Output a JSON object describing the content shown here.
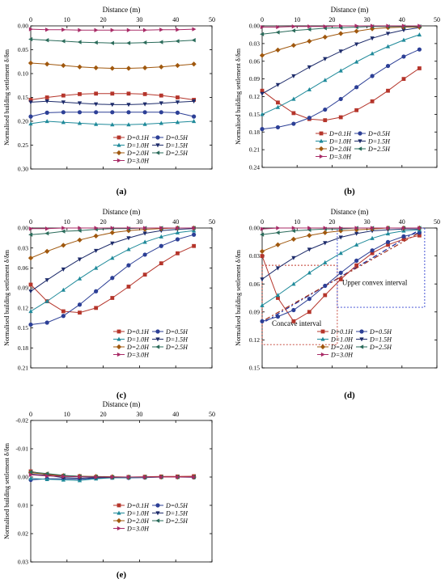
{
  "chart_data": [
    {
      "panel_label": "(a)",
      "type": "line",
      "xlabel": "Distance (m)",
      "ylabel": "Normalised building settlement δ/δm",
      "xlim": [
        0,
        50
      ],
      "xticks": [
        0,
        10,
        20,
        30,
        40,
        50
      ],
      "ylim": [
        0,
        0.3
      ],
      "yticks": [
        0.0,
        0.05,
        0.1,
        0.15,
        0.2,
        0.25,
        0.3
      ],
      "y_inverted": true,
      "x": [
        0,
        4.5,
        9,
        13.5,
        18,
        22.5,
        27,
        31.5,
        36,
        40.5,
        45
      ],
      "legend": [
        "D=0.1H",
        "D=0.5H",
        "D=1.0H",
        "D=1.5H",
        "D=2.0H",
        "D=2.5H",
        "D=3.0H"
      ],
      "series": [
        {
          "name": "D=0.1H",
          "color": "#b5352b",
          "marker": "square",
          "values": [
            0.155,
            0.15,
            0.146,
            0.143,
            0.142,
            0.142,
            0.142,
            0.143,
            0.146,
            0.15,
            0.155
          ]
        },
        {
          "name": "D=0.5H",
          "color": "#2c3f96",
          "marker": "circle",
          "values": [
            0.19,
            0.182,
            0.181,
            0.181,
            0.181,
            0.181,
            0.181,
            0.181,
            0.181,
            0.182,
            0.19
          ]
        },
        {
          "name": "D=1.0H",
          "color": "#1f8a9a",
          "marker": "triangle",
          "values": [
            0.205,
            0.2,
            0.202,
            0.204,
            0.206,
            0.207,
            0.207,
            0.206,
            0.204,
            0.202,
            0.2
          ]
        },
        {
          "name": "D=1.5H",
          "color": "#1d2b6a",
          "marker": "tri-down",
          "values": [
            0.16,
            0.158,
            0.16,
            0.162,
            0.164,
            0.165,
            0.165,
            0.164,
            0.162,
            0.16,
            0.158
          ]
        },
        {
          "name": "D=2.0H",
          "color": "#a0580e",
          "marker": "diamond",
          "values": [
            0.078,
            0.08,
            0.083,
            0.086,
            0.088,
            0.089,
            0.089,
            0.088,
            0.086,
            0.083,
            0.08
          ]
        },
        {
          "name": "D=2.5H",
          "color": "#2a6b5a",
          "marker": "tri-left",
          "values": [
            0.028,
            0.03,
            0.032,
            0.034,
            0.035,
            0.036,
            0.036,
            0.035,
            0.034,
            0.032,
            0.03
          ]
        },
        {
          "name": "D=3.0H",
          "color": "#a82a66",
          "marker": "tri-right",
          "values": [
            0.007,
            0.008,
            0.008,
            0.009,
            0.009,
            0.009,
            0.009,
            0.009,
            0.008,
            0.008,
            0.007
          ]
        }
      ]
    },
    {
      "panel_label": "(b)",
      "type": "line",
      "xlabel": "Distance (m)",
      "ylabel": "Normalised building settlement δ/δm",
      "xlim": [
        0,
        50
      ],
      "xticks": [
        0,
        10,
        20,
        30,
        40,
        50
      ],
      "ylim": [
        0,
        0.24
      ],
      "yticks": [
        0.0,
        0.03,
        0.06,
        0.09,
        0.12,
        0.15,
        0.18,
        0.21,
        0.24
      ],
      "y_inverted": true,
      "x": [
        0,
        4.5,
        9,
        13.5,
        18,
        22.5,
        27,
        31.5,
        36,
        40.5,
        45
      ],
      "legend": [
        "D=0.1H",
        "D=0.5H",
        "D=1.0H",
        "D=1.5H",
        "D=2.0H",
        "D=2.5H",
        "D=3.0H"
      ],
      "series": [
        {
          "name": "D=0.1H",
          "color": "#b5352b",
          "marker": "square",
          "values": [
            0.11,
            0.13,
            0.148,
            0.158,
            0.16,
            0.155,
            0.143,
            0.128,
            0.11,
            0.09,
            0.072
          ]
        },
        {
          "name": "D=0.5H",
          "color": "#2c3f96",
          "marker": "circle",
          "values": [
            0.175,
            0.172,
            0.166,
            0.156,
            0.142,
            0.124,
            0.104,
            0.085,
            0.068,
            0.052,
            0.04
          ]
        },
        {
          "name": "D=1.0H",
          "color": "#1f8a9a",
          "marker": "triangle",
          "values": [
            0.15,
            0.138,
            0.124,
            0.108,
            0.092,
            0.076,
            0.061,
            0.047,
            0.035,
            0.024,
            0.015
          ]
        },
        {
          "name": "D=1.5H",
          "color": "#1d2b6a",
          "marker": "tri-down",
          "values": [
            0.115,
            0.1,
            0.085,
            0.07,
            0.056,
            0.043,
            0.031,
            0.021,
            0.013,
            0.007,
            0.003
          ]
        },
        {
          "name": "D=2.0H",
          "color": "#a0580e",
          "marker": "diamond",
          "values": [
            0.05,
            0.041,
            0.033,
            0.026,
            0.019,
            0.013,
            0.009,
            0.005,
            0.003,
            0.002,
            0.002
          ]
        },
        {
          "name": "D=2.5H",
          "color": "#2a6b5a",
          "marker": "tri-left",
          "values": [
            0.014,
            0.011,
            0.008,
            0.006,
            0.004,
            0.003,
            0.002,
            0.001,
            0.001,
            0.001,
            0.001
          ]
        },
        {
          "name": "D=3.0H",
          "color": "#a82a66",
          "marker": "tri-right",
          "values": [
            0.002,
            0.002,
            0.001,
            0.001,
            0.001,
            0.0,
            0.0,
            0.0,
            0.0,
            0.0,
            0.0
          ]
        }
      ]
    },
    {
      "panel_label": "(c)",
      "type": "line",
      "xlabel": "Distance (m)",
      "ylabel": "Normalised building settlement δ/δm",
      "xlim": [
        0,
        50
      ],
      "xticks": [
        0,
        10,
        20,
        30,
        40,
        50
      ],
      "ylim": [
        0,
        0.21
      ],
      "yticks": [
        0.0,
        0.03,
        0.06,
        0.09,
        0.12,
        0.15,
        0.18,
        0.21
      ],
      "y_inverted": true,
      "x": [
        0,
        4.5,
        9,
        13.5,
        18,
        22.5,
        27,
        31.5,
        36,
        40.5,
        45
      ],
      "legend": [
        "D=0.1H",
        "D=0.5H",
        "D=1.0H",
        "D=1.5H",
        "D=2.0H",
        "D=2.5H",
        "D=3.0H"
      ],
      "series": [
        {
          "name": "D=0.1H",
          "color": "#b5352b",
          "marker": "square",
          "values": [
            0.085,
            0.11,
            0.125,
            0.127,
            0.12,
            0.105,
            0.088,
            0.07,
            0.053,
            0.038,
            0.027
          ]
        },
        {
          "name": "D=0.5H",
          "color": "#2c3f96",
          "marker": "circle",
          "values": [
            0.145,
            0.142,
            0.132,
            0.115,
            0.095,
            0.075,
            0.056,
            0.04,
            0.027,
            0.017,
            0.01
          ]
        },
        {
          "name": "D=1.0H",
          "color": "#1f8a9a",
          "marker": "triangle",
          "values": [
            0.125,
            0.11,
            0.093,
            0.076,
            0.06,
            0.045,
            0.032,
            0.021,
            0.013,
            0.007,
            0.004
          ]
        },
        {
          "name": "D=1.5H",
          "color": "#1d2b6a",
          "marker": "tri-down",
          "values": [
            0.095,
            0.078,
            0.062,
            0.047,
            0.034,
            0.023,
            0.015,
            0.008,
            0.004,
            0.002,
            0.001
          ]
        },
        {
          "name": "D=2.0H",
          "color": "#a0580e",
          "marker": "diamond",
          "values": [
            0.045,
            0.035,
            0.026,
            0.018,
            0.012,
            0.007,
            0.004,
            0.002,
            0.001,
            0.0,
            0.0
          ]
        },
        {
          "name": "D=2.5H",
          "color": "#2a6b5a",
          "marker": "tri-left",
          "values": [
            0.01,
            0.008,
            0.005,
            0.004,
            0.002,
            0.001,
            0.001,
            0.0,
            0.0,
            0.0,
            0.0
          ]
        },
        {
          "name": "D=3.0H",
          "color": "#a82a66",
          "marker": "tri-right",
          "values": [
            0.001,
            0.001,
            0.0,
            0.0,
            0.0,
            0.0,
            0.0,
            0.0,
            0.0,
            0.0,
            0.0
          ]
        }
      ]
    },
    {
      "panel_label": "(d)",
      "type": "line",
      "xlabel": "Distance (m)",
      "ylabel": "Normalised building settlement δ/δm",
      "xlim": [
        0,
        50
      ],
      "xticks": [
        0,
        10,
        20,
        30,
        40,
        50
      ],
      "ylim": [
        0,
        0.15
      ],
      "yticks": [
        0.0,
        0.03,
        0.06,
        0.09,
        0.12,
        0.15
      ],
      "y_inverted": true,
      "x": [
        0,
        4.5,
        9,
        13.5,
        18,
        22.5,
        27,
        31.5,
        36,
        40.5,
        45
      ],
      "legend": [
        "D=0.1H",
        "D=0.5H",
        "D=1.0H",
        "D=1.5H",
        "D=2.0H",
        "D=2.5H",
        "D=3.0H"
      ],
      "annotations": [
        {
          "text": "Concave interval",
          "color": "#c0392b"
        },
        {
          "text": "Upper convex interval",
          "color": "#2f3fd0"
        }
      ],
      "series": [
        {
          "name": "D=0.1H",
          "color": "#b5352b",
          "marker": "square",
          "values": [
            0.03,
            0.075,
            0.1,
            0.09,
            0.072,
            0.055,
            0.04,
            0.027,
            0.018,
            0.012,
            0.008
          ]
        },
        {
          "name": "D=0.5H",
          "color": "#2c3f96",
          "marker": "circle",
          "values": [
            0.1,
            0.095,
            0.088,
            0.076,
            0.062,
            0.048,
            0.035,
            0.024,
            0.015,
            0.009,
            0.005
          ]
        },
        {
          "name": "D=1.0H",
          "color": "#1f8a9a",
          "marker": "triangle",
          "values": [
            0.083,
            0.072,
            0.06,
            0.048,
            0.037,
            0.027,
            0.018,
            0.011,
            0.006,
            0.003,
            0.002
          ]
        },
        {
          "name": "D=1.5H",
          "color": "#1d2b6a",
          "marker": "tri-down",
          "values": [
            0.055,
            0.043,
            0.032,
            0.023,
            0.016,
            0.01,
            0.006,
            0.003,
            0.002,
            0.001,
            0.001
          ]
        },
        {
          "name": "D=2.0H",
          "color": "#a0580e",
          "marker": "diamond",
          "values": [
            0.025,
            0.018,
            0.012,
            0.008,
            0.005,
            0.003,
            0.002,
            0.001,
            0.0,
            0.0,
            0.0
          ]
        },
        {
          "name": "D=2.5H",
          "color": "#2a6b5a",
          "marker": "tri-left",
          "values": [
            0.007,
            0.005,
            0.003,
            0.002,
            0.001,
            0.001,
            0.0,
            0.0,
            0.0,
            0.0,
            0.0
          ]
        },
        {
          "name": "D=3.0H",
          "color": "#a82a66",
          "marker": "tri-right",
          "values": [
            0.001,
            0.0,
            0.0,
            0.0,
            0.0,
            0.0,
            0.0,
            0.0,
            0.0,
            0.0,
            0.0
          ]
        }
      ]
    },
    {
      "panel_label": "(e)",
      "type": "line",
      "xlabel": "Distance (m)",
      "ylabel": "Normalised building settlement δ/δm",
      "xlim": [
        0,
        50
      ],
      "xticks": [
        0,
        10,
        20,
        30,
        40,
        50
      ],
      "ylim": [
        -0.02,
        0.03
      ],
      "yticks": [
        -0.02,
        -0.01,
        0.0,
        0.01,
        0.02,
        0.03
      ],
      "y_inverted": true,
      "x": [
        0,
        4.5,
        9,
        13.5,
        18,
        22.5,
        27,
        31.5,
        36,
        40.5,
        45
      ],
      "legend": [
        "D=0.1H",
        "D=0.5H",
        "D=1.0H",
        "D=1.5H",
        "D=2.0H",
        "D=2.5H",
        "D=3.0H"
      ],
      "series": [
        {
          "name": "D=0.1H",
          "color": "#b5352b",
          "marker": "square",
          "values": [
            -0.002,
            -0.0008,
            -0.0004,
            -0.0003,
            0.0,
            0.0001,
            0.0,
            -0.0001,
            -0.0002,
            -0.0002,
            -0.0003
          ]
        },
        {
          "name": "D=0.5H",
          "color": "#2c3f96",
          "marker": "circle",
          "values": [
            0.001,
            0.0006,
            0.0006,
            0.0008,
            0.0004,
            0.0002,
            0.0003,
            0.0002,
            0.0,
            0.0,
            0.0001
          ]
        },
        {
          "name": "D=1.0H",
          "color": "#1f8a9a",
          "marker": "triangle",
          "values": [
            0.0005,
            0.0008,
            0.001,
            0.0012,
            0.0006,
            0.0003,
            0.0002,
            0.0001,
            0.0,
            0.0,
            0.0
          ]
        },
        {
          "name": "D=1.5H",
          "color": "#1d2b6a",
          "marker": "tri-down",
          "values": [
            -0.001,
            -0.0006,
            0.0002,
            0.0004,
            0.0002,
            0.0001,
            0.0,
            0.0,
            0.0,
            0.0,
            0.0
          ]
        },
        {
          "name": "D=2.0H",
          "color": "#a0580e",
          "marker": "diamond",
          "values": [
            -0.0015,
            -0.001,
            -0.0005,
            -0.0003,
            -0.0002,
            -0.0001,
            0.0,
            0.0,
            0.0,
            0.0,
            0.0
          ]
        },
        {
          "name": "D=2.5H",
          "color": "#2a6b5a",
          "marker": "tri-left",
          "values": [
            -0.0018,
            -0.0012,
            -0.0006,
            -0.0002,
            -0.0001,
            0.0,
            0.0,
            0.0,
            0.0,
            0.0,
            0.0
          ]
        },
        {
          "name": "D=3.0H",
          "color": "#a82a66",
          "marker": "tri-right",
          "values": [
            -0.0008,
            -0.0004,
            -0.0002,
            -0.0001,
            0.0,
            0.0,
            0.0,
            0.0,
            0.0,
            0.0,
            0.0
          ]
        }
      ]
    }
  ]
}
